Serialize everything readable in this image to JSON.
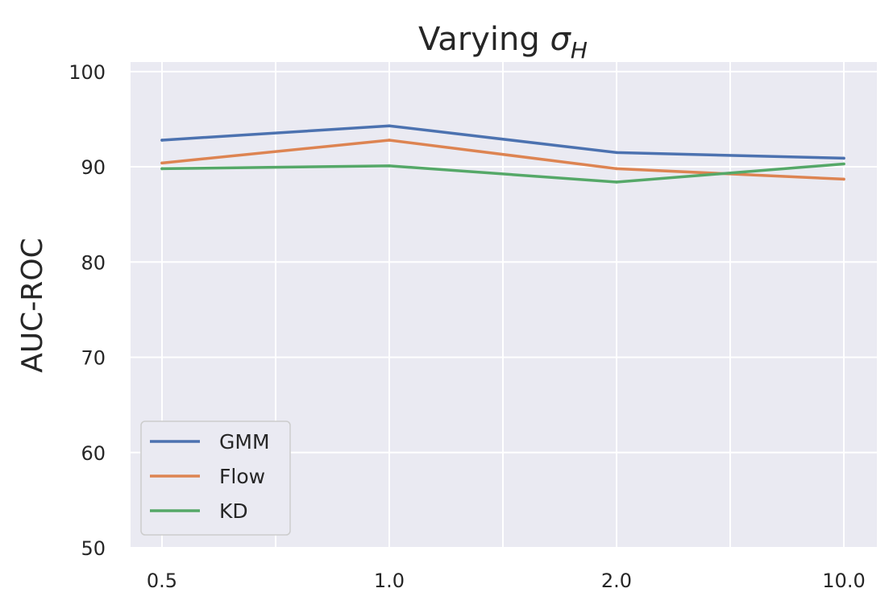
{
  "chart_data": {
    "type": "line",
    "title_prefix": "Varying ",
    "title_symbol": "σ",
    "title_subscript": "H",
    "xlabel": "",
    "ylabel": "AUC-ROC",
    "categories": [
      "0.5",
      "1.0",
      "2.0",
      "10.0"
    ],
    "ylim": [
      50,
      101
    ],
    "yticks": [
      "50",
      "60",
      "70",
      "80",
      "90",
      "100"
    ],
    "grid": true,
    "legend_position": "lower-left",
    "series": [
      {
        "name": "GMM",
        "color": "#4c72b0",
        "values": [
          92.8,
          94.3,
          91.5,
          90.9
        ]
      },
      {
        "name": "Flow",
        "color": "#dd8452",
        "values": [
          90.4,
          92.8,
          89.8,
          88.7
        ]
      },
      {
        "name": "KD",
        "color": "#55a868",
        "values": [
          89.8,
          90.1,
          88.4,
          90.3
        ]
      }
    ]
  }
}
